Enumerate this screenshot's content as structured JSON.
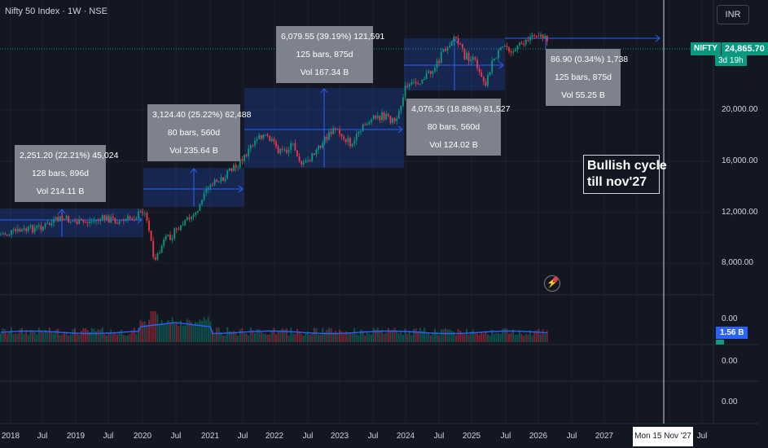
{
  "header": {
    "title": "Nifty 50 Index · 1W · NSE",
    "currency_button": "INR"
  },
  "price_scale": {
    "symbol": "NIFTY",
    "last_price": "24,865.70",
    "countdown": "3d 19h",
    "labels": [
      "20,000.00",
      "16,000.00",
      "12,000.00",
      "8,000.00"
    ]
  },
  "volume_pane": {
    "scale_label": "0.00",
    "volume_badge": "1.56 B"
  },
  "extra_panes": {
    "pane1_label": "0.00",
    "pane2_label": "0.00"
  },
  "time_axis": {
    "labels": [
      "2018",
      "Jul",
      "2019",
      "Jul",
      "2020",
      "Jul",
      "2021",
      "Jul",
      "2022",
      "Jul",
      "2023",
      "Jul",
      "2024",
      "Jul",
      "2025",
      "Jul",
      "2026",
      "Jul",
      "2027",
      "Jul"
    ],
    "crosshair_date": "Mon 15 Nov '27"
  },
  "measurements": [
    {
      "change": "2,251.20 (22.21%) 45,024",
      "bars": "128 bars, 896d",
      "volume": "Vol 214.11 B"
    },
    {
      "change": "3,124.40 (25.22%) 62,488",
      "bars": "80 bars, 560d",
      "volume": "Vol 235.64 B"
    },
    {
      "change": "6,079.55 (39.19%) 121,591",
      "bars": "125 bars, 875d",
      "volume": "Vol 167.34 B"
    },
    {
      "change": "4,076.35 (18.88%) 81,527",
      "bars": "80 bars, 560d",
      "volume": "Vol 124.02 B"
    },
    {
      "change": "86.90 (0.34%) 1,738",
      "bars": "125 bars, 875d",
      "volume": "Vol 55.25 B"
    }
  ],
  "annotation": {
    "line1": "Bullish cycle",
    "line2": "till nov'27"
  },
  "colors": {
    "background": "#131722",
    "up": "#089981",
    "down": "#f23645",
    "range_fill": "#1e3a8a",
    "range_line": "#2962ff",
    "label_box": "#7e828c"
  },
  "icons": {
    "alert": "lightning-icon"
  }
}
